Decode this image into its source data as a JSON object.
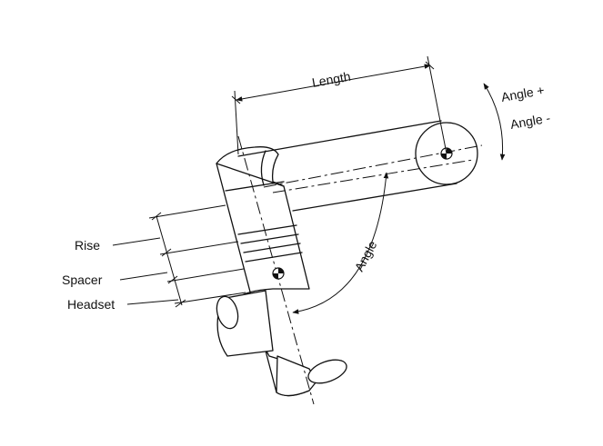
{
  "labels": {
    "length": "Length",
    "angle_plus": "Angle +",
    "angle_minus": "Angle -",
    "angle": "Angle",
    "rise": "Rise",
    "spacer": "Spacer",
    "headset": "Headset"
  },
  "colors": {
    "line": "#111111",
    "background": "#ffffff"
  }
}
